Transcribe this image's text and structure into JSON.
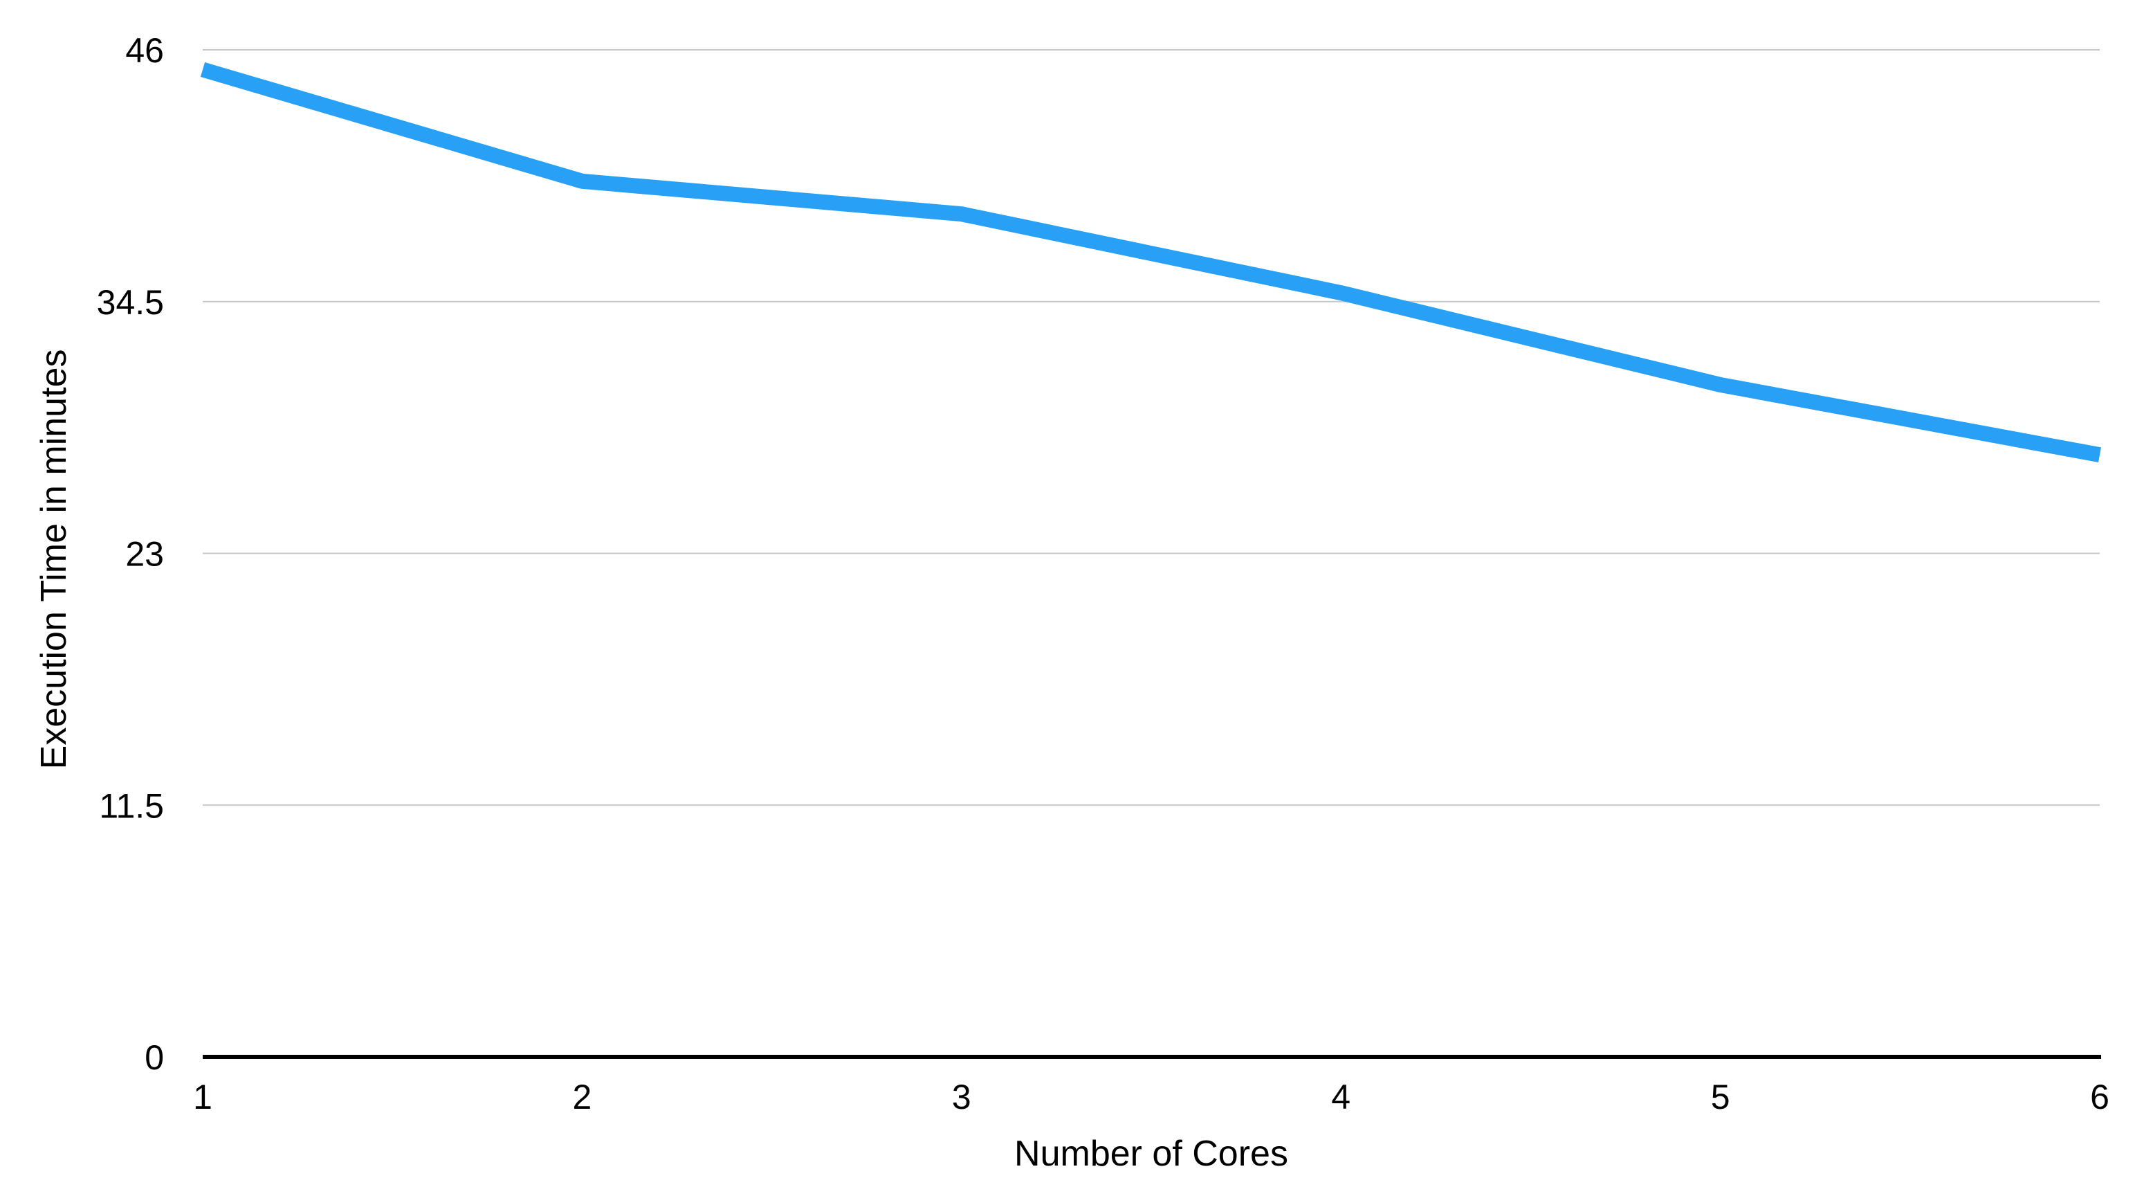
{
  "chart_data": {
    "type": "line",
    "title": "",
    "xlabel": "Number of Cores",
    "ylabel": "Execution Time in minutes",
    "x": [
      1,
      2,
      3,
      4,
      5,
      6
    ],
    "xtick_labels": [
      "1",
      "2",
      "3",
      "4",
      "5",
      "6"
    ],
    "yticks": [
      0,
      11.5,
      23,
      34.5,
      46
    ],
    "ytick_labels": [
      "0",
      "11.5",
      "23",
      "34.5",
      "46"
    ],
    "xlim": [
      1,
      6
    ],
    "ylim": [
      0,
      46
    ],
    "series": [
      {
        "name": "execution-time",
        "values": [
          45.1,
          40.0,
          38.5,
          34.9,
          30.7,
          27.5
        ],
        "color": "#28a0f5"
      }
    ],
    "grid": "horizontal",
    "legend_position": "none",
    "colors": {
      "line": "#28a0f5",
      "gridline": "#c7c7c7",
      "axis": "#000000",
      "text": "#000000",
      "background": "#ffffff"
    }
  }
}
